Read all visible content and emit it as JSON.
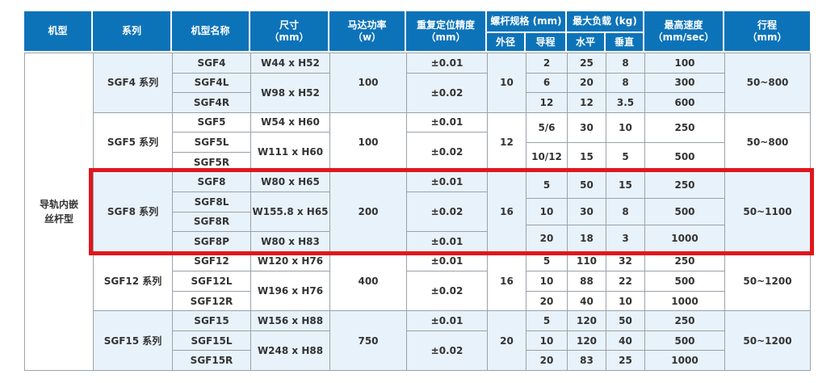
{
  "colors": {
    "header_bg": "#0d73b9",
    "header_text": "#ffffff",
    "row_shade": "#e8f2fa",
    "grid_line": "#9aa2a9",
    "highlight_red": "#e1161c",
    "body_text": "#333333"
  },
  "table": {
    "headers": {
      "machine_type": "机型",
      "series": "系列",
      "model_name": "机型名称",
      "size_line1": "尺寸",
      "size_line2": "（mm）",
      "power_line1": "马达功率",
      "power_line2": "（w）",
      "precision_line1": "重复定位精度",
      "precision_line2": "（mm）",
      "screw_spec": "螺杆规格 (mm)",
      "outer_diameter": "外径",
      "lead": "导程",
      "max_load": "最大负载 (kg)",
      "load_horizontal": "水平",
      "load_vertical": "垂直",
      "speed_line1": "最高速度",
      "speed_line2": "（mm/sec）",
      "stroke_line1": "行程",
      "stroke_line2": "（mm）"
    },
    "machine_type_value": "导轨内嵌\n丝杆型",
    "groups": [
      {
        "series": "SGF4 系列",
        "shade": true,
        "highlighted": false,
        "models": [
          "SGF4",
          "SGF4L",
          "SGF4R"
        ],
        "dims": [
          {
            "text": "W44 x H52",
            "rows": 1
          },
          {
            "text": "W98 x H52",
            "rows": 2
          }
        ],
        "power": "100",
        "precision": [
          {
            "text": "±0.01",
            "rows": 1
          },
          {
            "text": "±0.02",
            "rows": 2
          }
        ],
        "outer_diameter": "10",
        "specs": [
          {
            "lead": "2",
            "horizontal": "25",
            "vertical": "8",
            "speed": "100",
            "rows": 1
          },
          {
            "lead": "6",
            "horizontal": "20",
            "vertical": "8",
            "speed": "300",
            "rows": 1
          },
          {
            "lead": "12",
            "horizontal": "12",
            "vertical": "3.5",
            "speed": "600",
            "rows": 1
          }
        ],
        "stroke": "50~800"
      },
      {
        "series": "SGF5 系列",
        "shade": false,
        "highlighted": false,
        "models": [
          "SGF5",
          "SGF5L",
          "SGF5R"
        ],
        "dims": [
          {
            "text": "W54 x H60",
            "rows": 1
          },
          {
            "text": "W111 x H60",
            "rows": 2
          }
        ],
        "power": "100",
        "precision": [
          {
            "text": "±0.01",
            "rows": 1
          },
          {
            "text": "±0.02",
            "rows": 2
          }
        ],
        "outer_diameter": "12",
        "specs": [
          {
            "lead": "5/6",
            "horizontal": "30",
            "vertical": "10",
            "speed": "250",
            "rows": 1.5
          },
          {
            "lead": "10/12",
            "horizontal": "15",
            "vertical": "5",
            "speed": "500",
            "rows": 1.5
          }
        ],
        "stroke": "50~800"
      },
      {
        "series": "SGF8 系列",
        "shade": true,
        "highlighted": true,
        "models": [
          "SGF8",
          "SGF8L",
          "SGF8R",
          "SGF8P"
        ],
        "dims": [
          {
            "text": "W80 x H65",
            "rows": 1
          },
          {
            "text": "W155.8 x H65",
            "rows": 2
          },
          {
            "text": "W80 x H83",
            "rows": 1
          }
        ],
        "power": "200",
        "precision": [
          {
            "text": "±0.01",
            "rows": 1
          },
          {
            "text": "±0.02",
            "rows": 2
          },
          {
            "text": "±0.01",
            "rows": 1
          }
        ],
        "outer_diameter": "16",
        "specs": [
          {
            "lead": "5",
            "horizontal": "50",
            "vertical": "15",
            "speed": "250",
            "rows": 1.3333
          },
          {
            "lead": "10",
            "horizontal": "30",
            "vertical": "8",
            "speed": "500",
            "rows": 1.3333
          },
          {
            "lead": "20",
            "horizontal": "18",
            "vertical": "3",
            "speed": "1000",
            "rows": 1.3333
          }
        ],
        "stroke": "50~1100"
      },
      {
        "series": "SGF12 系列",
        "shade": false,
        "highlighted": false,
        "models": [
          "SGF12",
          "SGF12L",
          "SGF12R"
        ],
        "dims": [
          {
            "text": "W120 x H76",
            "rows": 1
          },
          {
            "text": "W196 x H76",
            "rows": 2
          }
        ],
        "power": "400",
        "precision": [
          {
            "text": "±0.01",
            "rows": 1
          },
          {
            "text": "±0.02",
            "rows": 2
          }
        ],
        "outer_diameter": "16",
        "specs": [
          {
            "lead": "5",
            "horizontal": "110",
            "vertical": "32",
            "speed": "250",
            "rows": 1
          },
          {
            "lead": "10",
            "horizontal": "88",
            "vertical": "22",
            "speed": "500",
            "rows": 1
          },
          {
            "lead": "20",
            "horizontal": "40",
            "vertical": "10",
            "speed": "1000",
            "rows": 1
          }
        ],
        "stroke": "50~1200"
      },
      {
        "series": "SGF15 系列",
        "shade": true,
        "highlighted": false,
        "models": [
          "SGF15",
          "SGF15L",
          "SGF15R"
        ],
        "dims": [
          {
            "text": "W156 x H88",
            "rows": 1
          },
          {
            "text": "W248 x H88",
            "rows": 2
          }
        ],
        "power": "750",
        "precision": [
          {
            "text": "±0.01",
            "rows": 1
          },
          {
            "text": "±0.02",
            "rows": 2
          }
        ],
        "outer_diameter": "20",
        "specs": [
          {
            "lead": "5",
            "horizontal": "120",
            "vertical": "50",
            "speed": "250",
            "rows": 1
          },
          {
            "lead": "10",
            "horizontal": "120",
            "vertical": "40",
            "speed": "500",
            "rows": 1
          },
          {
            "lead": "20",
            "horizontal": "83",
            "vertical": "25",
            "speed": "1000",
            "rows": 1
          }
        ],
        "stroke": "50~1200"
      }
    ]
  }
}
